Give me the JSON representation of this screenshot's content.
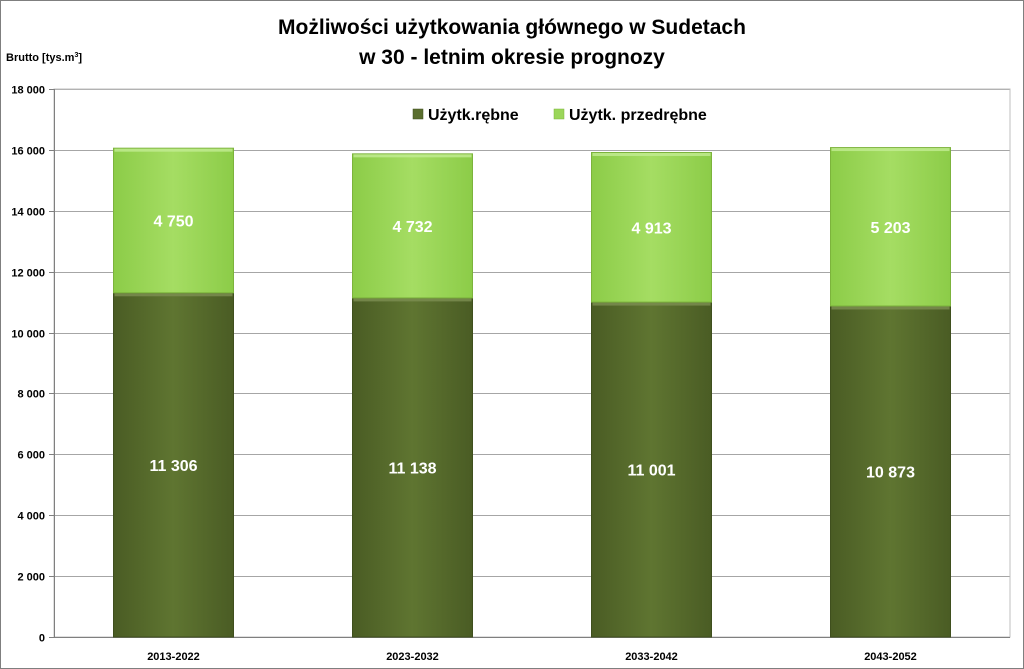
{
  "chart_data": {
    "type": "bar",
    "stacked": true,
    "title_line_1": "Możliwości użytkowania głównego w Sudetach",
    "title_line_2": "w 30 - letnim okresie prognozy",
    "ylabel": "Brutto [tys.m",
    "ylabel_sup": "3",
    "ylabel_end": "]",
    "xlabel": "",
    "ylim": [
      0,
      18000
    ],
    "yticks": [
      0,
      2000,
      4000,
      6000,
      8000,
      10000,
      12000,
      14000,
      16000,
      18000
    ],
    "ytick_labels": [
      "0",
      "2 000",
      "4 000",
      "6 000",
      "8 000",
      "10 000",
      "12 000",
      "14 000",
      "16 000",
      "18 000"
    ],
    "grid": true,
    "legend_position": "top-center",
    "categories": [
      "2013-2022",
      "2023-2032",
      "2033-2042",
      "2043-2052"
    ],
    "series": [
      {
        "name": "Użytk.rębne",
        "color": "#5a6e2e",
        "values": [
          11306,
          11138,
          11001,
          10873
        ],
        "labels": [
          "11 306",
          "11 138",
          "11 001",
          "10 873"
        ]
      },
      {
        "name": "Użytk. przedrębne",
        "color": "#9bd65a",
        "values": [
          4750,
          4732,
          4913,
          5203
        ],
        "labels": [
          "4 750",
          "4 732",
          "4 913",
          "5 203"
        ]
      }
    ]
  }
}
